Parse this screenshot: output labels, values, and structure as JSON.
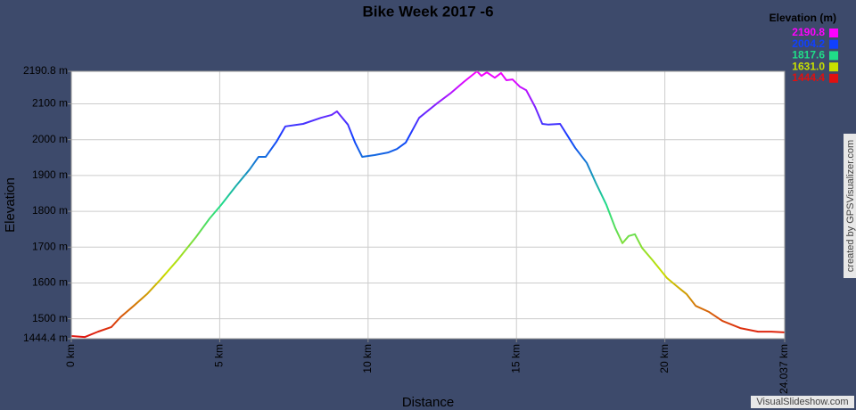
{
  "chart_data": {
    "type": "line",
    "title": "Bike Week 2017 -6",
    "x_label": "Distance",
    "y_label": "Elevation",
    "credit": "created by GPSVisualizer.com",
    "watermark": "VisualSlideshow.com",
    "grid": true,
    "legend": {
      "title": "Elevation (m)",
      "position": "top-right",
      "entries": [
        {
          "value": 2190.8,
          "label": "2190.8",
          "color": "#ff00ff"
        },
        {
          "value": 2004.2,
          "label": "2004.2",
          "color": "#1040ff"
        },
        {
          "value": 1817.6,
          "label": "1817.6",
          "color": "#20dd88"
        },
        {
          "value": 1631.0,
          "label": "1631.0",
          "color": "#c8e000"
        },
        {
          "value": 1444.4,
          "label": "1444.4",
          "color": "#e01010"
        }
      ]
    },
    "xlim": [
      0,
      24.037
    ],
    "xticks": [
      {
        "value": 0,
        "label": "0 km"
      },
      {
        "value": 5,
        "label": "5 km"
      },
      {
        "value": 10,
        "label": "10 km"
      },
      {
        "value": 15,
        "label": "15 km"
      },
      {
        "value": 20,
        "label": "20 km"
      },
      {
        "value": 24.037,
        "label": "24.037 km"
      }
    ],
    "ylim": [
      1444.4,
      2190.8
    ],
    "yticks": [
      {
        "value": 1444.4,
        "label": "1444.4 m"
      },
      {
        "value": 1500,
        "label": "1500 m"
      },
      {
        "value": 1600,
        "label": "1600 m"
      },
      {
        "value": 1700,
        "label": "1700 m"
      },
      {
        "value": 1800,
        "label": "1800 m"
      },
      {
        "value": 1900,
        "label": "1900 m"
      },
      {
        "value": 2000,
        "label": "2000 m"
      },
      {
        "value": 2100,
        "label": "2100 m"
      },
      {
        "value": 2190.8,
        "label": "2190.8 m"
      }
    ],
    "x": [
      0,
      0.45,
      0.9,
      1.35,
      1.65,
      2.1,
      2.55,
      3.0,
      3.6,
      4.2,
      4.66,
      5.05,
      5.56,
      6.01,
      6.31,
      6.55,
      6.91,
      7.21,
      7.81,
      8.41,
      8.77,
      8.95,
      9.32,
      9.56,
      9.8,
      10.22,
      10.67,
      10.97,
      11.27,
      11.72,
      12.32,
      12.77,
      13.22,
      13.67,
      13.82,
      14.0,
      14.27,
      14.48,
      14.66,
      14.87,
      15.11,
      15.33,
      15.63,
      15.87,
      16.08,
      16.47,
      16.98,
      17.37,
      17.67,
      18.03,
      18.33,
      18.57,
      18.78,
      18.99,
      19.23,
      19.59,
      20.07,
      20.43,
      20.73,
      21.04,
      21.49,
      21.94,
      22.54,
      23.14,
      23.59,
      24.037
    ],
    "values": [
      1452,
      1449,
      1464,
      1477,
      1504,
      1536,
      1569,
      1609,
      1666,
      1728,
      1780,
      1818,
      1872,
      1917,
      1952,
      1952,
      1994,
      2037,
      2044,
      2061,
      2069,
      2079,
      2042,
      1992,
      1952,
      1957,
      1964,
      1974,
      1992,
      2061,
      2101,
      2129,
      2161,
      2190.8,
      2178,
      2188,
      2173,
      2186,
      2166,
      2168,
      2148,
      2138,
      2091,
      2044,
      2042,
      2044,
      1977,
      1935,
      1880,
      1818,
      1753,
      1711,
      1731,
      1736,
      1698,
      1663,
      1614,
      1589,
      1569,
      1536,
      1519,
      1494,
      1474,
      1464,
      1464,
      1462
    ]
  }
}
